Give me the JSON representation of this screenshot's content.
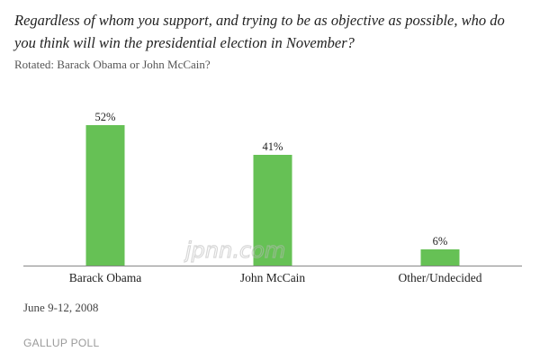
{
  "header": {
    "question": "Regardless of whom you support, and trying to be as objective as possible, who do you think will win the presidential election in November?",
    "note": "Rotated: Barack Obama or John McCain?"
  },
  "footer": {
    "date": "June 9-12, 2008",
    "brand": "GALLUP POLL"
  },
  "watermark": {
    "text": "jpnn.com"
  },
  "colors": {
    "bar": "#66c155",
    "axis": "#888888",
    "label": "#222222"
  },
  "chart_data": {
    "type": "bar",
    "categories": [
      "Barack Obama",
      "John McCain",
      "Other/Undecided"
    ],
    "values": [
      52,
      41,
      6
    ],
    "value_labels": [
      "52%",
      "41%",
      "6%"
    ],
    "title": "",
    "xlabel": "",
    "ylabel": "",
    "ylim": [
      0,
      60
    ],
    "grid": false,
    "legend": "none"
  }
}
